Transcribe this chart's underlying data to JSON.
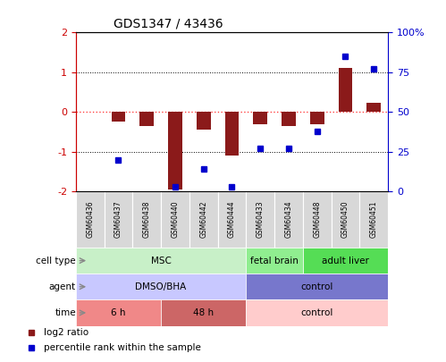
{
  "title": "GDS1347 / 43436",
  "samples": [
    "GSM60436",
    "GSM60437",
    "GSM60438",
    "GSM60440",
    "GSM60442",
    "GSM60444",
    "GSM60433",
    "GSM60434",
    "GSM60448",
    "GSM60450",
    "GSM60451"
  ],
  "log2_ratio": [
    0.0,
    -0.25,
    -0.35,
    -1.95,
    -0.45,
    -1.1,
    -0.3,
    -0.35,
    -0.3,
    1.1,
    0.22
  ],
  "percentile_rank": [
    null,
    20,
    null,
    3,
    14,
    3,
    27,
    27,
    38,
    85,
    77
  ],
  "ylim_left": [
    -2,
    2
  ],
  "ylim_right": [
    0,
    100
  ],
  "yticks_left": [
    -2,
    -1,
    0,
    1,
    2
  ],
  "yticks_right": [
    0,
    25,
    50,
    75,
    100
  ],
  "ytick_labels_right": [
    "0",
    "25",
    "50",
    "75",
    "100%"
  ],
  "bar_color": "#8B1A1A",
  "dot_color": "#0000CD",
  "hline_zero_color": "#FF4444",
  "sample_box_color": "#d8d8d8",
  "cell_type_groups": [
    {
      "label": "MSC",
      "start": 0,
      "end": 5,
      "color": "#c8f0c8"
    },
    {
      "label": "fetal brain",
      "start": 6,
      "end": 7,
      "color": "#90ee90"
    },
    {
      "label": "adult liver",
      "start": 8,
      "end": 10,
      "color": "#55dd55"
    }
  ],
  "agent_groups": [
    {
      "label": "DMSO/BHA",
      "start": 0,
      "end": 5,
      "color": "#c8c8ff"
    },
    {
      "label": "control",
      "start": 6,
      "end": 10,
      "color": "#7777cc"
    }
  ],
  "time_groups": [
    {
      "label": "6 h",
      "start": 0,
      "end": 2,
      "color": "#f08888"
    },
    {
      "label": "48 h",
      "start": 3,
      "end": 5,
      "color": "#cc6666"
    },
    {
      "label": "control",
      "start": 6,
      "end": 10,
      "color": "#ffcccc"
    }
  ],
  "row_labels": [
    "cell type",
    "agent",
    "time"
  ],
  "legend_items": [
    {
      "color": "#8B1A1A",
      "label": "log2 ratio"
    },
    {
      "color": "#0000CD",
      "label": "percentile rank within the sample"
    }
  ]
}
